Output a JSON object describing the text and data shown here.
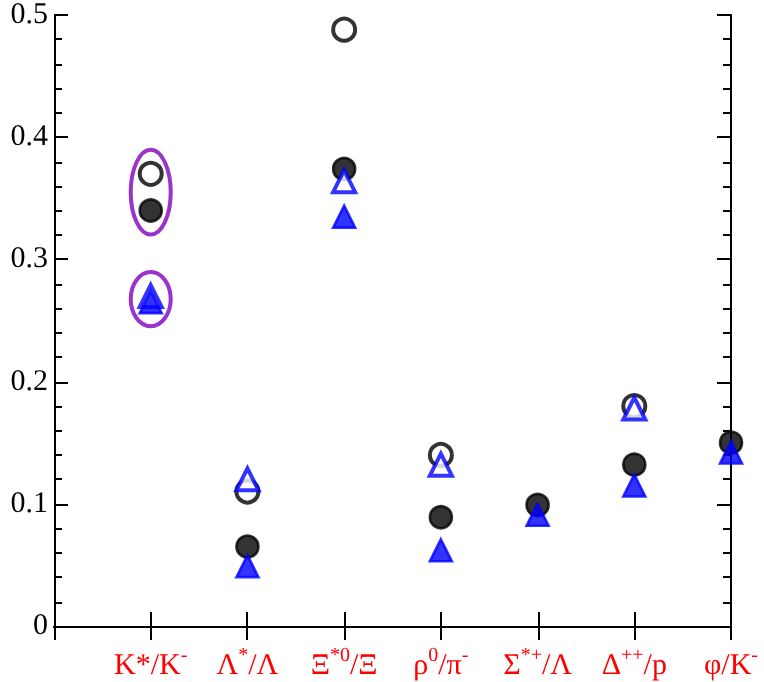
{
  "chart_data": {
    "type": "scatter",
    "categories": [
      "K*/K$^{-}$",
      "Λ$^{*}$/Λ",
      "Ξ$^{*0}$/Ξ",
      "ρ$^{0}$/π$^{-}$",
      "Σ$^{*+}$/Λ",
      "Δ$^{++}$/p",
      "φ/K$^{-}$"
    ],
    "series": [
      {
        "color": "#000000",
        "marker": "circle",
        "values": [
          0.37,
          0.11,
          0.488,
          0.14,
          null,
          0.18,
          null
        ]
      },
      {
        "color": "#000000",
        "marker": "circle",
        "values": [
          0.34,
          0.065,
          0.374,
          0.089,
          0.099,
          0.132,
          0.15
        ]
      },
      {
        "color": "#0000ff",
        "marker": "triangle",
        "values": [
          0.27,
          0.12,
          0.364,
          0.132,
          null,
          0.178,
          null
        ]
      },
      {
        "color": "#0000ff",
        "marker": "triangle",
        "values": [
          0.265,
          0.049,
          0.335,
          0.062,
          0.091,
          0.115,
          0.142
        ]
      }
    ],
    "ylim": [
      0,
      0.5
    ],
    "yticks": [
      0,
      0.1,
      0.2,
      0.3,
      0.4,
      0.5
    ],
    "grid": false
  }
}
